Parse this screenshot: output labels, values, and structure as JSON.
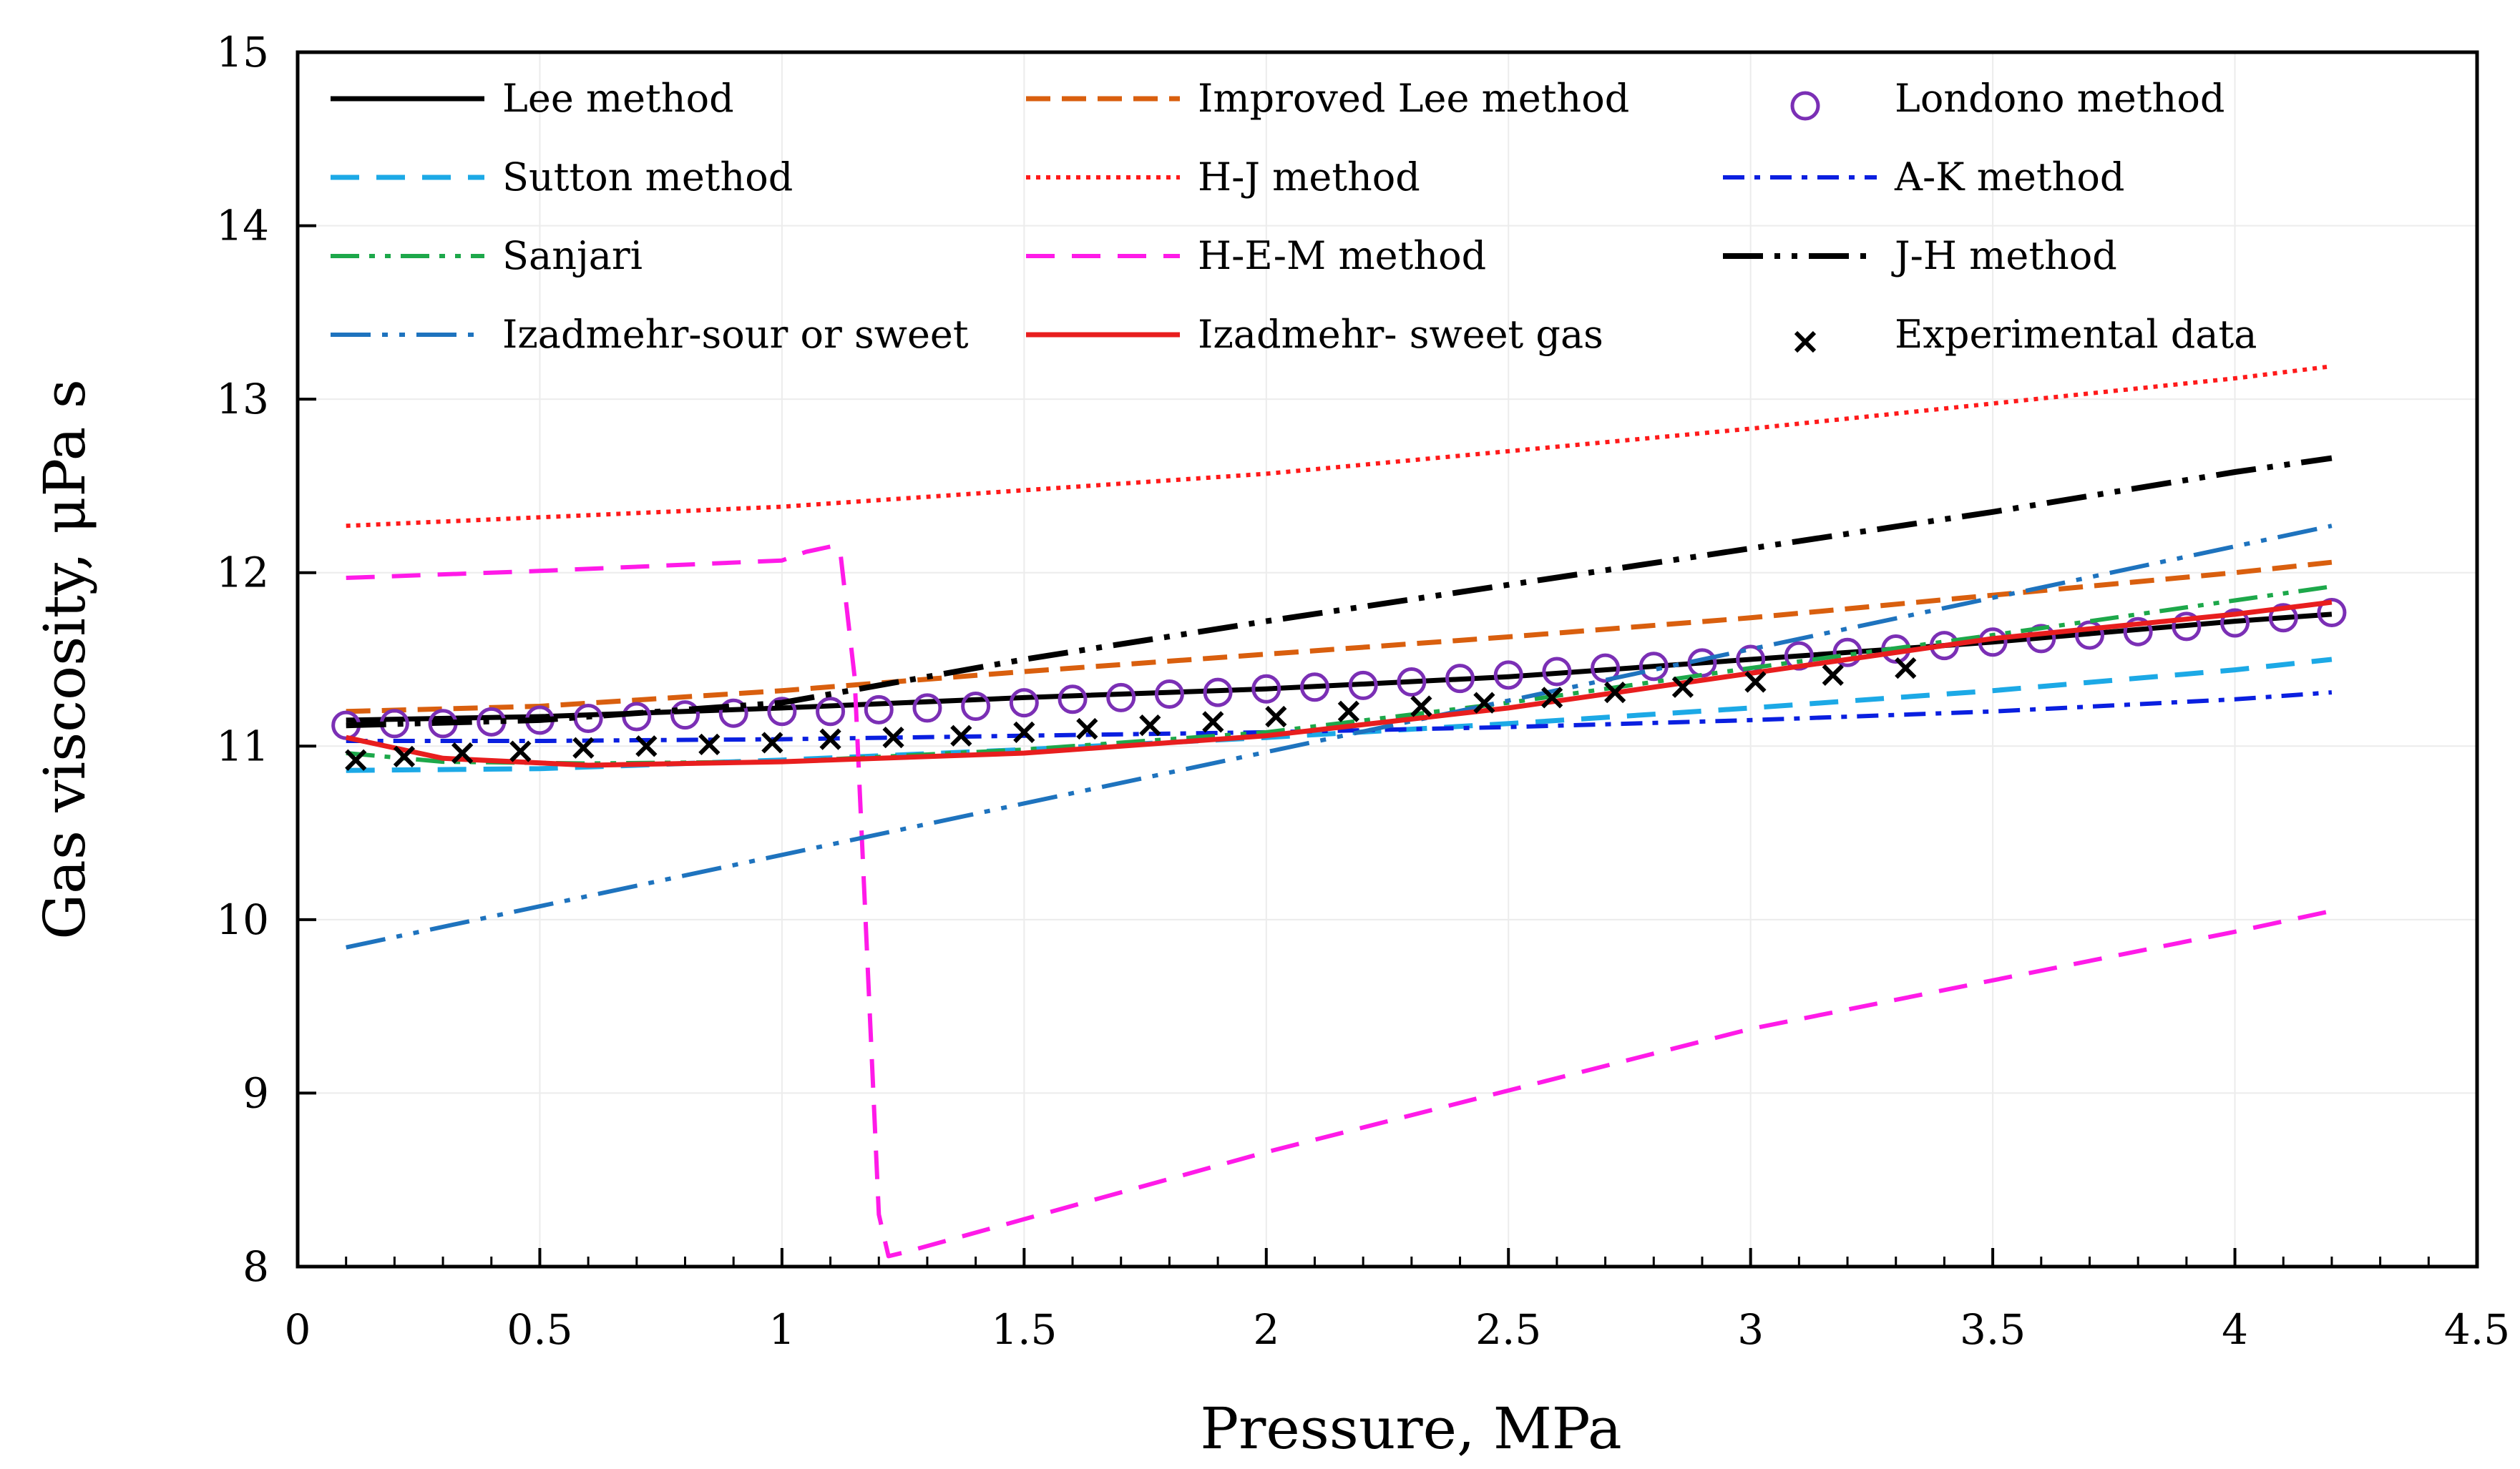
{
  "chart_data": {
    "type": "line",
    "title": "",
    "xlabel": "Pressure, MPa",
    "ylabel": "Gas viscosity,  μPa s",
    "xlim": [
      0,
      4.5
    ],
    "ylim": [
      8,
      15
    ],
    "xticks": [
      0,
      0.5,
      1,
      1.5,
      2,
      2.5,
      3,
      3.5,
      4,
      4.5
    ],
    "xtick_labels": [
      "0",
      "0.5",
      "1",
      "1.5",
      "2",
      "2.5",
      "3",
      "3.5",
      "4",
      "4.5"
    ],
    "yticks": [
      8,
      9,
      10,
      11,
      12,
      13,
      14,
      15
    ],
    "ytick_labels": [
      "8",
      "9",
      "10",
      "11",
      "12",
      "13",
      "14",
      "15"
    ],
    "grid": true,
    "legend_position": "top",
    "series": [
      {
        "name": "Lee method",
        "color": "#000000",
        "dash": "solid",
        "width": 7,
        "x": [
          0.1,
          0.5,
          1.0,
          1.5,
          2.0,
          2.5,
          3.0,
          3.5,
          4.0,
          4.2
        ],
        "y": [
          11.15,
          11.17,
          11.22,
          11.28,
          11.33,
          11.4,
          11.5,
          11.6,
          11.72,
          11.76
        ]
      },
      {
        "name": "Improved Lee method",
        "color": "#D95F0E",
        "dash": "long-dash",
        "width": 7,
        "x": [
          0.1,
          0.5,
          1.0,
          1.5,
          2.0,
          2.5,
          3.0,
          3.5,
          4.0,
          4.2
        ],
        "y": [
          11.2,
          11.23,
          11.32,
          11.43,
          11.53,
          11.63,
          11.74,
          11.87,
          12.0,
          12.06
        ]
      },
      {
        "name": "Londono method",
        "color": "#7B2FB5",
        "marker": "circle",
        "x": [
          0.1,
          0.2,
          0.3,
          0.4,
          0.5,
          0.6,
          0.7,
          0.8,
          0.9,
          1.0,
          1.1,
          1.2,
          1.3,
          1.4,
          1.5,
          1.6,
          1.7,
          1.8,
          1.9,
          2.0,
          2.1,
          2.2,
          2.3,
          2.4,
          2.5,
          2.6,
          2.7,
          2.8,
          2.9,
          3.0,
          3.1,
          3.2,
          3.3,
          3.4,
          3.5,
          3.6,
          3.7,
          3.8,
          3.9,
          4.0,
          4.1,
          4.2
        ],
        "y": [
          11.12,
          11.13,
          11.13,
          11.14,
          11.15,
          11.16,
          11.17,
          11.18,
          11.19,
          11.2,
          11.2,
          11.21,
          11.22,
          11.23,
          11.25,
          11.27,
          11.28,
          11.3,
          11.31,
          11.33,
          11.34,
          11.35,
          11.37,
          11.39,
          11.41,
          11.43,
          11.45,
          11.46,
          11.48,
          11.5,
          11.52,
          11.54,
          11.56,
          11.58,
          11.6,
          11.62,
          11.64,
          11.66,
          11.69,
          11.71,
          11.74,
          11.77
        ]
      },
      {
        "name": "Sutton method",
        "color": "#1CA9E6",
        "dash": "dash",
        "width": 7,
        "x": [
          0.1,
          0.5,
          1.0,
          1.5,
          2.0,
          2.5,
          3.0,
          3.5,
          4.0,
          4.2
        ],
        "y": [
          10.86,
          10.87,
          10.92,
          10.98,
          11.05,
          11.13,
          11.22,
          11.32,
          11.44,
          11.5
        ]
      },
      {
        "name": "H-J method",
        "color": "#FF1A1A",
        "dash": "dot",
        "width": 6,
        "x": [
          0.1,
          1.0,
          2.0,
          3.0,
          4.0,
          4.2
        ],
        "y": [
          12.27,
          12.38,
          12.57,
          12.83,
          13.12,
          13.19
        ]
      },
      {
        "name": "A-K method",
        "color": "#0A1FE0",
        "dash": "dash-dot",
        "width": 6,
        "x": [
          0.1,
          0.5,
          1.0,
          1.5,
          2.0,
          2.5,
          3.0,
          3.5,
          4.0,
          4.2
        ],
        "y": [
          11.03,
          11.03,
          11.04,
          11.06,
          11.08,
          11.11,
          11.15,
          11.2,
          11.27,
          11.31
        ]
      },
      {
        "name": "Sanjari",
        "color": "#1DA84A",
        "dash": "dash-dot-dot",
        "width": 6,
        "x": [
          0.1,
          0.3,
          0.6,
          1.0,
          1.5,
          2.0,
          2.5,
          3.0,
          3.5,
          4.0,
          4.2
        ],
        "y": [
          10.96,
          10.91,
          10.9,
          10.91,
          10.98,
          11.08,
          11.25,
          11.45,
          11.64,
          11.84,
          11.92
        ]
      },
      {
        "name": "H-E-M method",
        "color": "#FF1AE8",
        "dash": "dash",
        "width": 6,
        "x": [
          0.1,
          0.5,
          1.0,
          1.05,
          1.1,
          1.12,
          1.15,
          1.2,
          1.22,
          1.25,
          2.0,
          3.0,
          4.0,
          4.2
        ],
        "y": [
          11.97,
          12.01,
          12.07,
          12.12,
          12.15,
          12.13,
          11.4,
          8.3,
          8.06,
          8.08,
          8.66,
          9.37,
          9.93,
          10.05
        ]
      },
      {
        "name": "J-H method",
        "color": "#000000",
        "dash": "long-dash-dot-dot",
        "width": 8,
        "x": [
          0.1,
          0.5,
          1.0,
          1.5,
          2.0,
          2.5,
          3.0,
          3.5,
          4.0,
          4.2
        ],
        "y": [
          11.12,
          11.15,
          11.25,
          11.5,
          11.72,
          11.93,
          12.14,
          12.35,
          12.58,
          12.66
        ]
      },
      {
        "name": "Izadmehr-sour or sweet",
        "color": "#1E73BE",
        "dash": "long-dash-dot-dot",
        "width": 6,
        "x": [
          0.1,
          4.2
        ],
        "y": [
          9.84,
          12.27
        ]
      },
      {
        "name": "Izadmehr- sweet gas",
        "color": "#E81E1E",
        "dash": "solid",
        "width": 7,
        "x": [
          0.1,
          0.3,
          0.6,
          1.0,
          1.5,
          2.0,
          2.5,
          3.0,
          3.5,
          4.0,
          4.2
        ],
        "y": [
          11.05,
          10.93,
          10.89,
          10.91,
          10.96,
          11.06,
          11.22,
          11.42,
          11.62,
          11.76,
          11.83
        ]
      },
      {
        "name": "Experimental data",
        "color": "#000000",
        "marker": "x",
        "x": [
          0.12,
          0.22,
          0.34,
          0.46,
          0.59,
          0.72,
          0.85,
          0.98,
          1.1,
          1.23,
          1.37,
          1.5,
          1.63,
          1.76,
          1.89,
          2.02,
          2.17,
          2.32,
          2.45,
          2.59,
          2.72,
          2.86,
          3.01,
          3.17,
          3.32
        ],
        "y": [
          10.92,
          10.94,
          10.96,
          10.97,
          10.99,
          11.0,
          11.01,
          11.02,
          11.04,
          11.05,
          11.06,
          11.08,
          11.1,
          11.12,
          11.14,
          11.17,
          11.2,
          11.23,
          11.25,
          11.28,
          11.31,
          11.34,
          11.37,
          11.41,
          11.45
        ]
      }
    ]
  }
}
